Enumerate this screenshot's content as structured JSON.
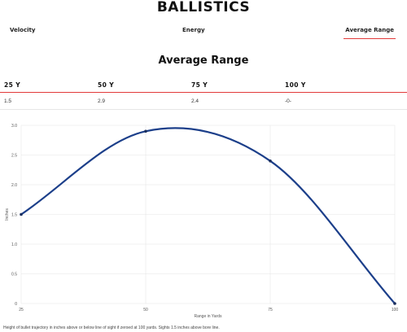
{
  "page": {
    "title": "BALLISTICS"
  },
  "tabs": [
    {
      "label": "Velocity",
      "active": false
    },
    {
      "label": "Energy",
      "active": false
    },
    {
      "label": "Average Range",
      "active": true
    }
  ],
  "section": {
    "title": "Average Range"
  },
  "ranges": {
    "headers": [
      "25 Y",
      "50 Y",
      "75 Y",
      "100 Y"
    ],
    "values": [
      "1.5",
      "2.9",
      "2.4",
      "-0-"
    ]
  },
  "colors": {
    "accent": "#e23a3a",
    "line": "#1c3f8a",
    "grid": "#e6e6e6"
  },
  "chart_data": {
    "type": "line",
    "x": [
      25,
      50,
      75,
      100
    ],
    "series": [
      {
        "values": [
          1.5,
          2.9,
          2.4,
          0
        ]
      }
    ],
    "xlabel": "Range in Yards",
    "ylabel": "Inches",
    "xlim": [
      25,
      100
    ],
    "ylim": [
      0,
      3.0
    ],
    "xticks": [
      "25",
      "50",
      "75",
      "100"
    ],
    "yticks": [
      "0",
      "0.5",
      "1.0",
      "1.5",
      "2.0",
      "2.5",
      "3.0"
    ],
    "grid": true
  },
  "footnote": "Height of bullet trajectory in inches above or below line of sight if zeroed at 100 yards. Sights 1.5 inches above bore line."
}
